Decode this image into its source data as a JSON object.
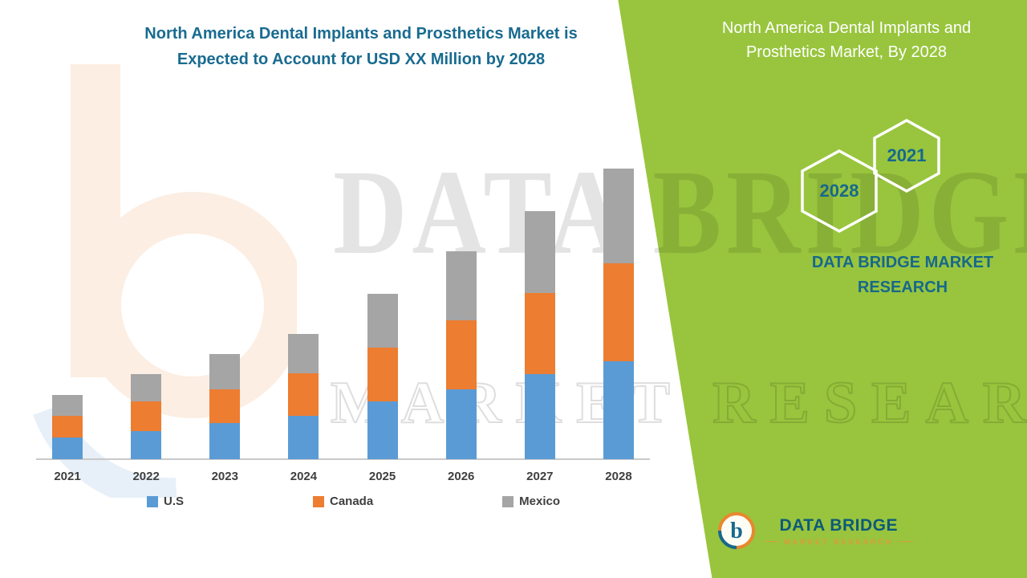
{
  "header": {
    "title_line1": "North America Dental Implants and Prosthetics Market is",
    "title_line2": "Expected to Account for USD XX Million by 2028"
  },
  "panel": {
    "title_line1": "North America Dental Implants and",
    "title_line2": "Prosthetics Market, By 2028",
    "hex_right": "2021",
    "hex_left": "2028",
    "brand_line1": "DATA BRIDGE MARKET",
    "brand_line2": "RESEARCH",
    "logo_text": "DATA BRIDGE",
    "logo_tagline": "MARKET RESEARCH"
  },
  "watermark": {
    "line1": "DATA BRIDGE",
    "line2": "MARKET RESEARCH"
  },
  "chart_data": {
    "type": "bar",
    "stacked": true,
    "title": "North America Dental Implants and Prosthetics Market is Expected to Account for USD XX Million by 2028",
    "xlabel": "",
    "ylabel": "",
    "y_axis_visible": false,
    "value_note": "No y-axis shown; values are relative heights (market value shown as USD XX Million)",
    "categories": [
      "2021",
      "2022",
      "2023",
      "2024",
      "2025",
      "2026",
      "2027",
      "2028"
    ],
    "series": [
      {
        "name": "U.S",
        "color": "#5b9bd5",
        "values": [
          27,
          35,
          45,
          54,
          72,
          87,
          106,
          122
        ]
      },
      {
        "name": "Canada",
        "color": "#ed7d31",
        "values": [
          27,
          37,
          42,
          53,
          67,
          86,
          101,
          122
        ]
      },
      {
        "name": "Mexico",
        "color": "#a5a5a5",
        "values": [
          26,
          34,
          44,
          49,
          67,
          86,
          102,
          118
        ]
      }
    ],
    "legend_position": "bottom",
    "grid": false
  },
  "colors": {
    "accent_teal": "#196b90",
    "panel_green": "#98c53d",
    "us_blue": "#5b9bd5",
    "canada_orange": "#ed7d31",
    "mexico_gray": "#a5a5a5",
    "logo_teal": "#0d5a78",
    "logo_gold": "#dc9b3c"
  }
}
